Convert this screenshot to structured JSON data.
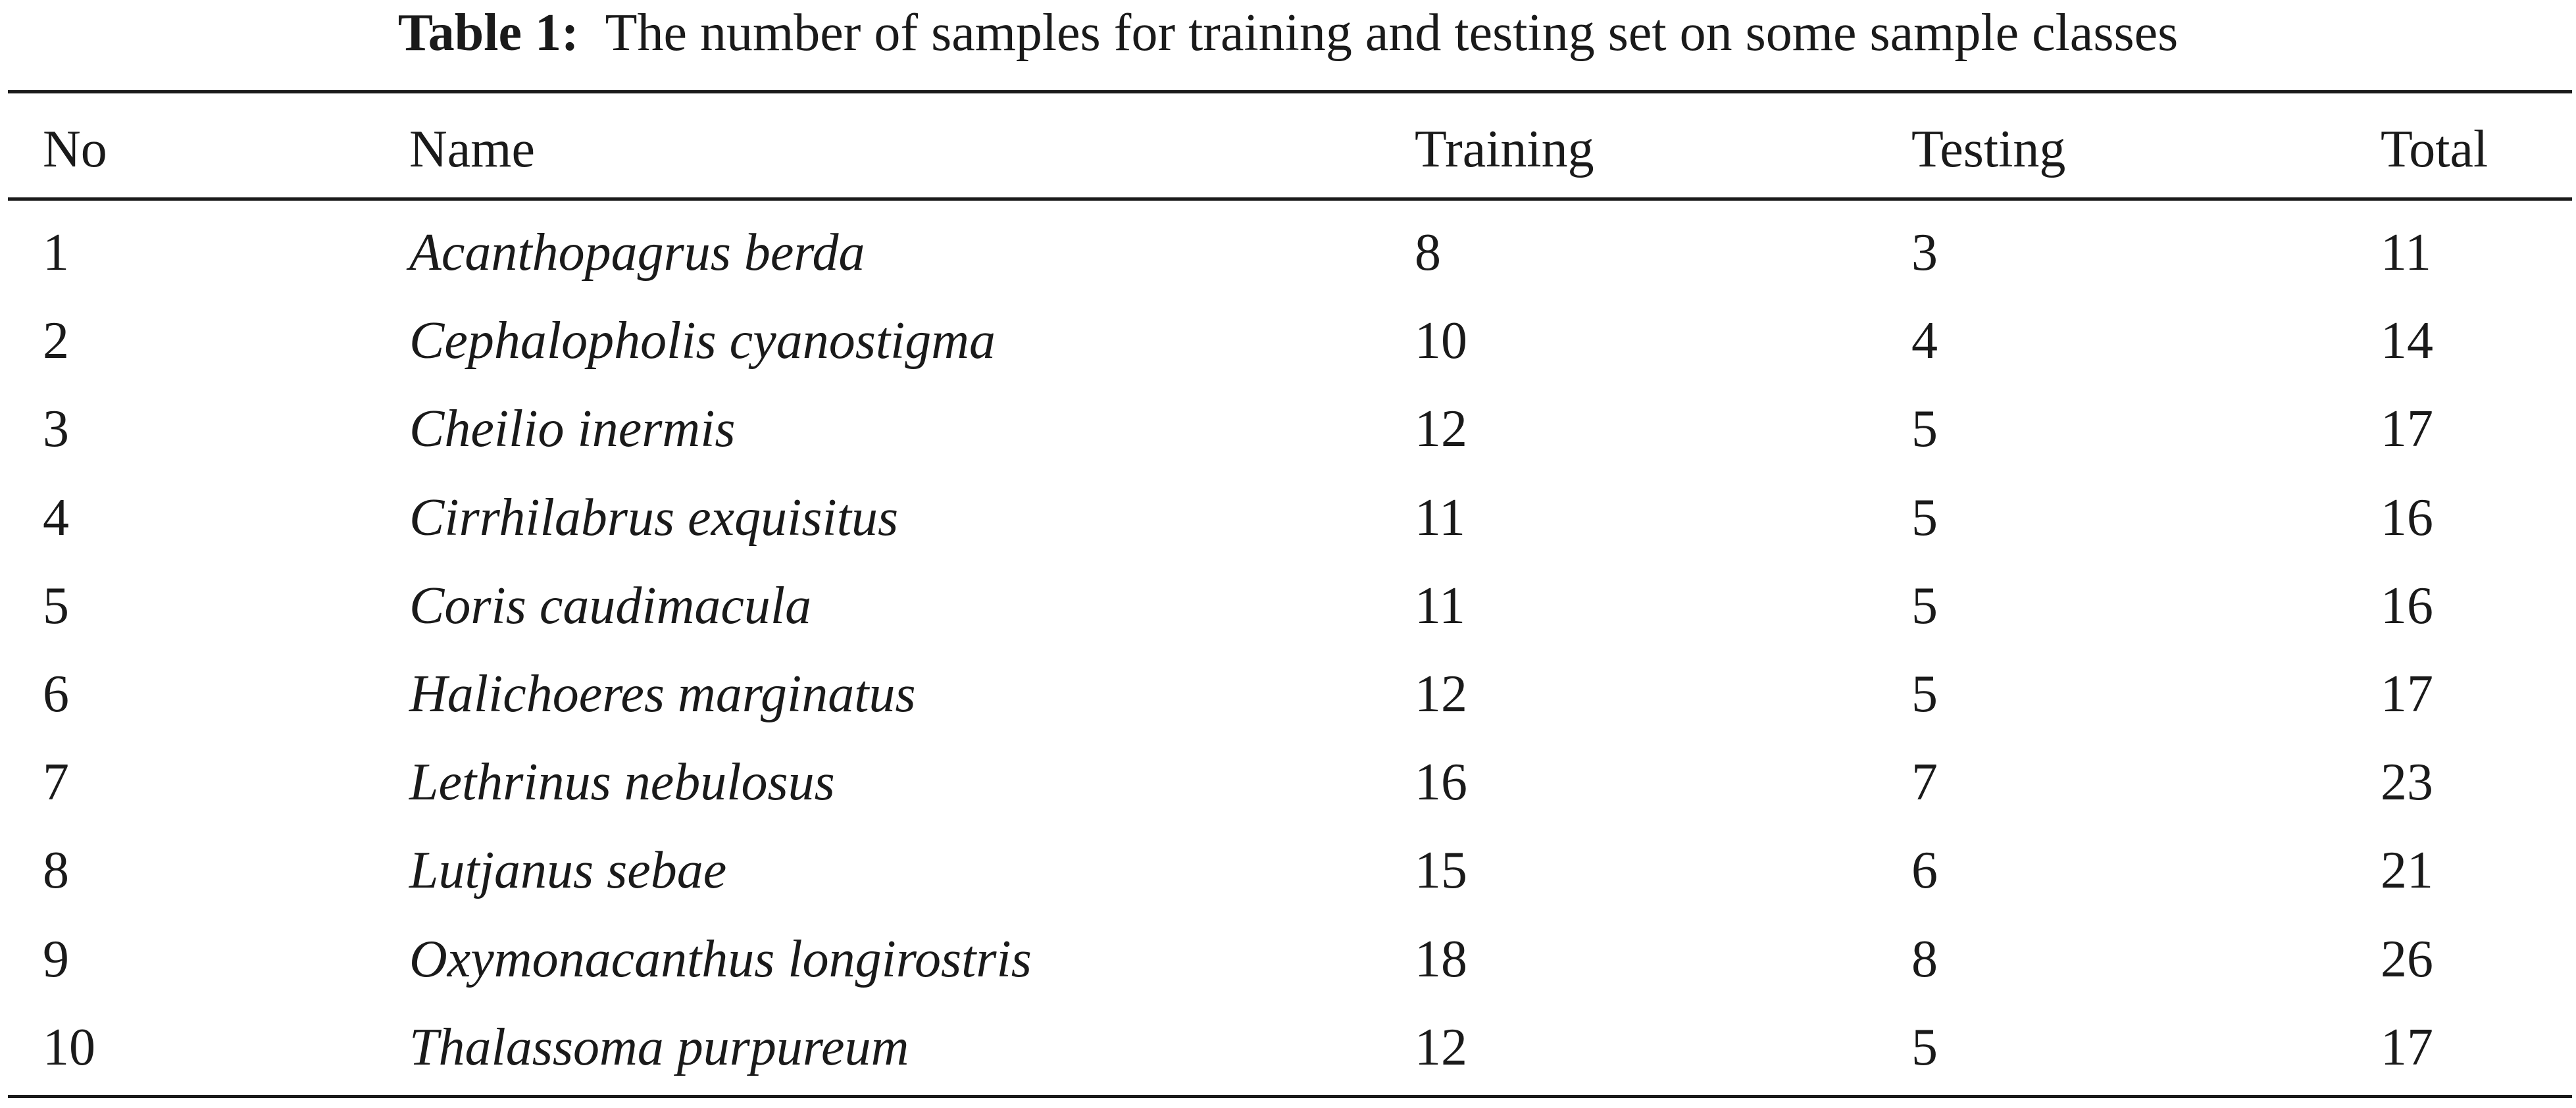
{
  "caption": {
    "label": "Table 1:",
    "text": "The number of samples for training and testing set on some sample classes"
  },
  "table": {
    "headers": [
      "No",
      "Name",
      "Training",
      "Testing",
      "Total"
    ],
    "rows": [
      [
        "1",
        "Acanthopagrus berda",
        "8",
        "3",
        "11"
      ],
      [
        "2",
        "Cephalopholis cyanostigma",
        "10",
        "4",
        "14"
      ],
      [
        "3",
        "Cheilio inermis",
        "12",
        "5",
        "17"
      ],
      [
        "4",
        "Cirrhilabrus exquisitus",
        "11",
        "5",
        "16"
      ],
      [
        "5",
        "Coris caudimacula",
        "11",
        "5",
        "16"
      ],
      [
        "6",
        "Halichoeres marginatus",
        "12",
        "5",
        "17"
      ],
      [
        "7",
        "Lethrinus nebulosus",
        "16",
        "7",
        "23"
      ],
      [
        "8",
        "Lutjanus sebae",
        "15",
        "6",
        "21"
      ],
      [
        "9",
        "Oxymonacanthus longirostris",
        "18",
        "8",
        "26"
      ],
      [
        "10",
        "Thalassoma purpureum",
        "12",
        "5",
        "17"
      ]
    ]
  }
}
